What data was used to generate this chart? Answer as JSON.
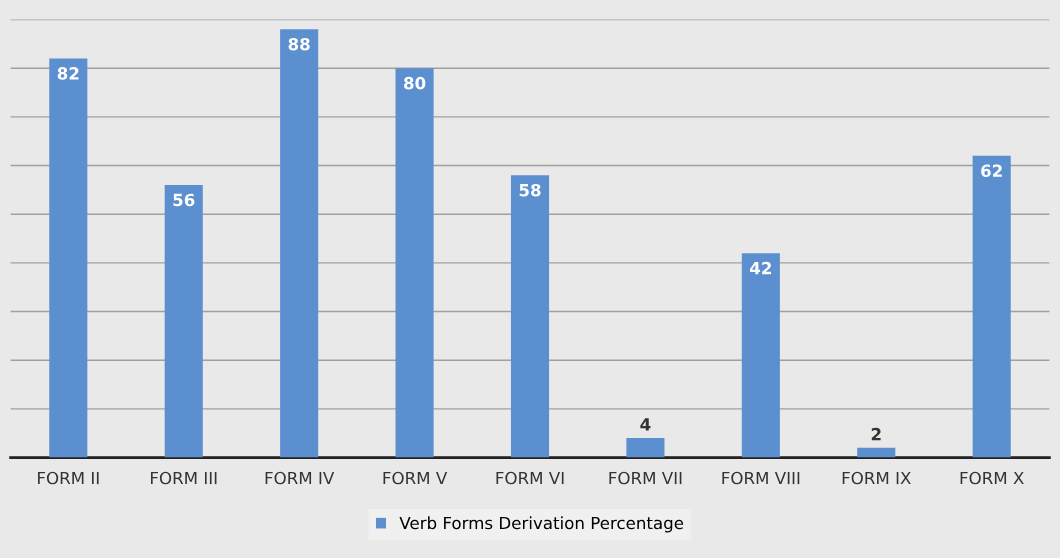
{
  "chart_data": {
    "type": "bar",
    "categories": [
      "FORM II",
      "FORM III",
      "FORM IV",
      "FORM V",
      "FORM VI",
      "FORM VII",
      "FORM VIII",
      "FORM IX",
      "FORM X"
    ],
    "series": [
      {
        "name": "Verb Forms Derivation Percentage",
        "color": "#5b8fd0",
        "values": [
          82,
          56,
          88,
          80,
          58,
          4,
          42,
          2,
          62
        ]
      }
    ],
    "ylim": [
      0,
      90
    ],
    "yticks": [
      {
        "value": 0,
        "label": null
      },
      {
        "value": 10,
        "label": null
      },
      {
        "value": 20,
        "label": null
      },
      {
        "value": 30,
        "label": null
      },
      {
        "value": 40,
        "label": null
      },
      {
        "value": 50,
        "label": null
      },
      {
        "value": 60,
        "label": null
      },
      {
        "value": 70,
        "label": null
      },
      {
        "value": 80,
        "label": null
      },
      {
        "value": 90,
        "label": null
      }
    ],
    "tick_labels": "x",
    "grid": "y",
    "data_labels": true,
    "legend": "bottom"
  }
}
